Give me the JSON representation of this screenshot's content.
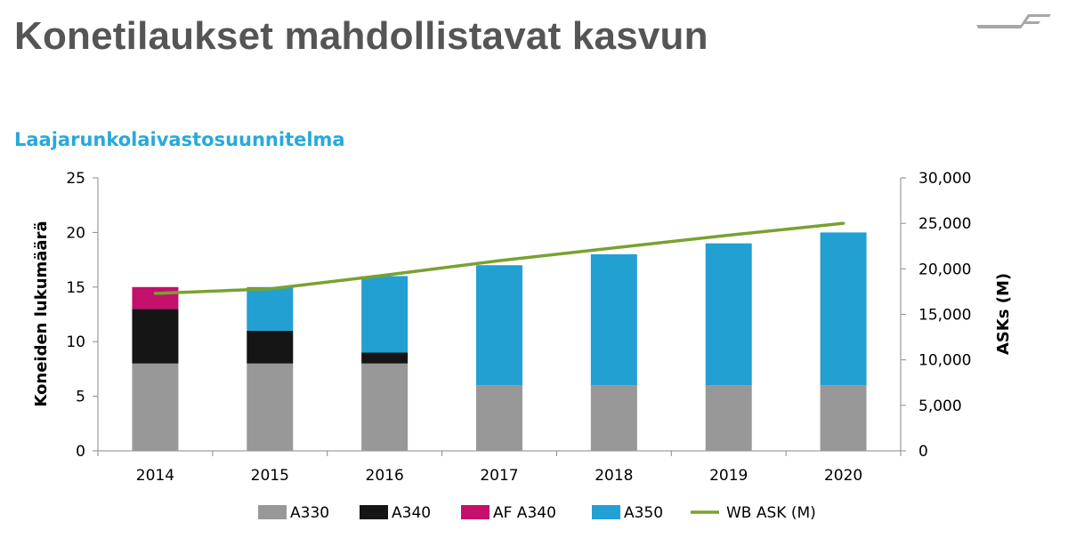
{
  "header": {
    "title": "Konetilaukset mahdollistavat kasvun",
    "subtitle": "Laajarunkolaivastosuunnitelma"
  },
  "logo": {
    "name": "finnair-swoosh-logo",
    "color": "#a7a7a7"
  },
  "chart_data": {
    "type": "bar",
    "stacked": true,
    "categories": [
      "2014",
      "2015",
      "2016",
      "2017",
      "2018",
      "2019",
      "2020"
    ],
    "series": [
      {
        "name": "A330",
        "color": "#989898",
        "values": [
          8,
          8,
          8,
          6,
          6,
          6,
          6
        ]
      },
      {
        "name": "A340",
        "color": "#151515",
        "values": [
          5,
          3,
          1,
          0,
          0,
          0,
          0
        ]
      },
      {
        "name": "AF A340",
        "color": "#c4106c",
        "values": [
          2,
          0,
          0,
          0,
          0,
          0,
          0
        ]
      },
      {
        "name": "A350",
        "color": "#22a0d2",
        "values": [
          0,
          4,
          7,
          11,
          12,
          13,
          14
        ]
      }
    ],
    "line_series": {
      "name": "WB ASK (M)",
      "color": "#78a22f",
      "axis": "right",
      "values": [
        17300,
        17800,
        19300,
        20900,
        22300,
        23700,
        25000
      ]
    },
    "ylabel": "Koneiden lukumäärä",
    "ylabel_right": "ASKs (M)",
    "ylim": [
      0,
      25
    ],
    "ylim_right": [
      0,
      30000
    ],
    "yticks": [
      "0",
      "5",
      "10",
      "15",
      "20",
      "25"
    ],
    "yticks_right": [
      "0",
      "5,000",
      "10,000",
      "15,000",
      "20,000",
      "25,000",
      "30,000"
    ],
    "grid": false,
    "legend": "bottom"
  }
}
